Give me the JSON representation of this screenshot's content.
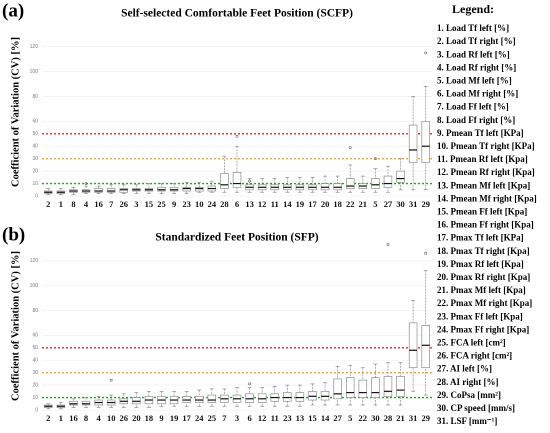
{
  "chart_data": [
    {
      "type": "box",
      "panel_label": "(a)",
      "title": "Self-selected Comfortable Feet Position (SCFP)",
      "y_label": "Coefficient of Variation (CV) [%]",
      "categories": [
        "2",
        "1",
        "8",
        "4",
        "16",
        "7",
        "26",
        "3",
        "15",
        "25",
        "9",
        "23",
        "10",
        "24",
        "28",
        "6",
        "13",
        "12",
        "11",
        "14",
        "19",
        "17",
        "20",
        "18",
        "22",
        "21",
        "5",
        "27",
        "30",
        "31",
        "29"
      ],
      "min": [
        1,
        1,
        1,
        2,
        2,
        2,
        2,
        2,
        2,
        2,
        2,
        2,
        3,
        3,
        3,
        3,
        3,
        3,
        3,
        3,
        3,
        3,
        3,
        3,
        3,
        3,
        3,
        3,
        5,
        5,
        5
      ],
      "q1": [
        2,
        2,
        3,
        3,
        3,
        3,
        3,
        4,
        4,
        4,
        4,
        4,
        4,
        4,
        6,
        7,
        5,
        5,
        5,
        5,
        5,
        5,
        5,
        5,
        6,
        6,
        6,
        7,
        11,
        27,
        27
      ],
      "median": [
        3,
        3,
        4,
        4,
        4,
        4,
        5,
        5,
        5,
        5,
        5,
        6,
        6,
        6,
        9,
        10,
        7,
        7,
        7,
        7,
        7,
        7,
        7,
        7,
        8,
        8,
        9,
        10,
        14,
        37,
        40
      ],
      "q3": [
        4,
        4,
        5,
        5,
        6,
        6,
        6,
        6,
        6,
        7,
        7,
        7,
        7,
        8,
        18,
        19,
        9,
        9,
        9,
        9,
        9,
        9,
        10,
        10,
        14,
        10,
        14,
        16,
        20,
        57,
        60
      ],
      "max": [
        6,
        6,
        7,
        8,
        8,
        9,
        9,
        9,
        10,
        10,
        10,
        11,
        11,
        12,
        32,
        40,
        14,
        14,
        14,
        15,
        15,
        15,
        16,
        16,
        25,
        16,
        22,
        24,
        30,
        80,
        88
      ],
      "outliers": [
        [],
        [],
        [],
        [
          10
        ],
        [],
        [],
        [],
        [],
        [],
        [],
        [],
        [],
        [],
        [],
        [],
        [
          48
        ],
        [
          12
        ],
        [],
        [],
        [],
        [],
        [],
        [],
        [],
        [
          39
        ],
        [],
        [
          30
        ],
        [],
        [],
        [],
        [
          115
        ]
      ],
      "ylim": [
        0,
        135
      ],
      "yticks": [
        0,
        20,
        40,
        60,
        80,
        100,
        120
      ],
      "grid": true,
      "box_color": "#8c8c8c",
      "reference_lines": [
        {
          "value": 50,
          "color": "#e8262a"
        },
        {
          "value": 30,
          "color": "#f2a51c"
        },
        {
          "value": 10,
          "color": "#1fa31f"
        }
      ]
    },
    {
      "type": "box",
      "panel_label": "(b)",
      "title": "Standardized Feet Position (SFP)",
      "y_label": "Coefficient of Variation (CV) [%]",
      "categories": [
        "2",
        "1",
        "16",
        "8",
        "4",
        "10",
        "26",
        "20",
        "18",
        "9",
        "19",
        "17",
        "24",
        "25",
        "7",
        "3",
        "6",
        "12",
        "11",
        "23",
        "13",
        "15",
        "14",
        "27",
        "5",
        "22",
        "30",
        "28",
        "21",
        "31",
        "29"
      ],
      "min": [
        1,
        1,
        2,
        2,
        2,
        2,
        2,
        2,
        2,
        3,
        3,
        3,
        3,
        3,
        3,
        3,
        3,
        3,
        3,
        3,
        3,
        4,
        4,
        4,
        4,
        4,
        4,
        4,
        4,
        15,
        12
      ],
      "q1": [
        2,
        2,
        4,
        4,
        4,
        4,
        5,
        5,
        5,
        5,
        5,
        6,
        6,
        6,
        6,
        6,
        6,
        6,
        7,
        7,
        7,
        8,
        8,
        9,
        10,
        10,
        10,
        11,
        11,
        34,
        34
      ],
      "median": [
        3,
        3,
        5,
        5,
        6,
        6,
        7,
        7,
        8,
        8,
        8,
        8,
        8,
        8,
        9,
        9,
        9,
        9,
        10,
        10,
        10,
        11,
        11,
        13,
        14,
        14,
        14,
        15,
        16,
        48,
        52
      ],
      "q3": [
        4,
        4,
        7,
        7,
        8,
        8,
        9,
        10,
        11,
        11,
        11,
        11,
        11,
        12,
        12,
        12,
        13,
        13,
        13,
        14,
        14,
        15,
        15,
        25,
        26,
        24,
        26,
        27,
        27,
        70,
        68
      ],
      "max": [
        5,
        6,
        9,
        10,
        11,
        12,
        13,
        14,
        15,
        15,
        15,
        15,
        16,
        17,
        17,
        18,
        18,
        18,
        19,
        20,
        20,
        21,
        22,
        35,
        36,
        34,
        37,
        38,
        38,
        88,
        112
      ],
      "outliers": [
        [],
        [],
        [],
        [],
        [],
        [
          24
        ],
        [],
        [],
        [],
        [],
        [],
        [],
        [],
        [],
        [],
        [],
        [
          21
        ],
        [],
        [],
        [],
        [],
        [],
        [],
        [],
        [],
        [],
        [],
        [
          133
        ],
        [],
        [],
        [
          126
        ]
      ],
      "ylim": [
        0,
        135
      ],
      "yticks": [
        0,
        20,
        40,
        60,
        80,
        100,
        120
      ],
      "grid": true,
      "box_color": "#8c8c8c",
      "reference_lines": [
        {
          "value": 50,
          "color": "#e8262a"
        },
        {
          "value": 30,
          "color": "#f2a51c"
        },
        {
          "value": 10,
          "color": "#1fa31f"
        }
      ]
    }
  ],
  "legend": {
    "title": "Legend:",
    "items": [
      "1. Load Tf left [%]",
      "2. Load Tf right [%]",
      "3. Load Rf left [%]",
      "4. Load Rf right [%]",
      "5. Load Mf left [%]",
      "6. Load Mf right [%]",
      "7. Load Ff left [%]",
      "8. Load Ff right [%]",
      "9. Pmean Tf left [KPa]",
      "10. Pmean Tf right [KPa]",
      "11. Pmean Rf left [Kpa]",
      "12. Pmean Rf right [Kpa]",
      "13. Pmean Mf left [Kpa]",
      "14. Pmean Mf right [Kpa]",
      "15. Pmean Ff left [Kpa]",
      "16. Pmean Ff right [Kpa]",
      "17. Pmax Tf left [KPa]",
      "18. Pmax Tf right [Kpa]",
      "19. Pmax Rf left [Kpa]",
      "20. Pmax Rf right [Kpa]",
      "21. Pmax Mf left [Kpa]",
      "22. Pmax Mf right [Kpa]",
      "23. Pmax Ff left [Kpa]",
      "24. Pmax Ff right [Kpa]",
      "25. FCA left [cm²]",
      "26. FCA right [cm²]",
      "27. AI left [%]",
      "28. AI right [%]",
      "29. CoPsa [mm²]",
      "30. CP speed [mm/s]",
      "31. LSF [mm⁻¹]"
    ]
  }
}
